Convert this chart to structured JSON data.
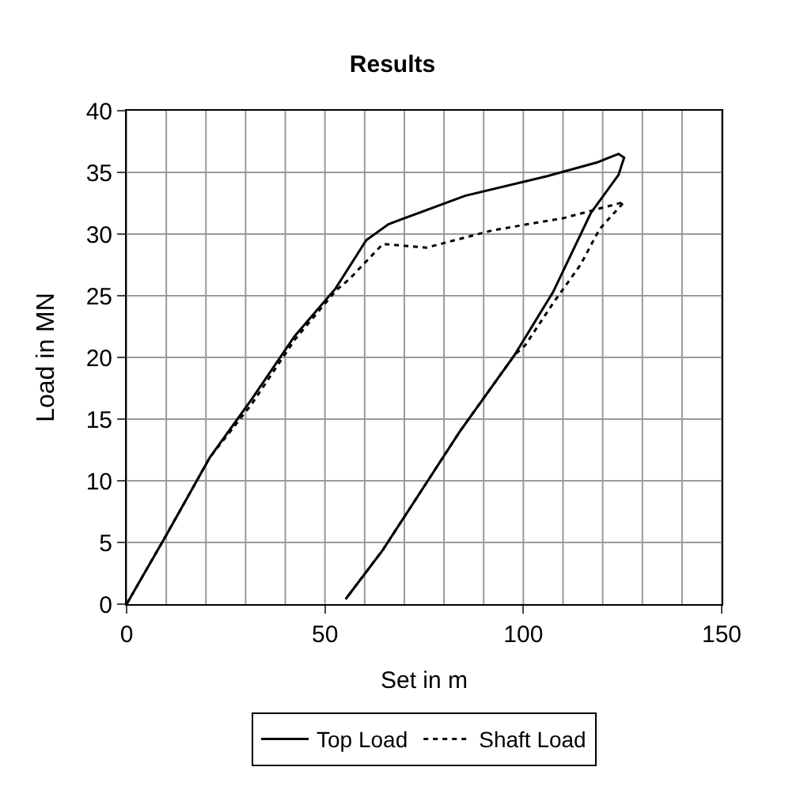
{
  "chart_data": {
    "type": "line",
    "title": "Results",
    "xlabel": "Set in m",
    "ylabel": "Load in MN",
    "xlim": [
      0,
      150
    ],
    "xticks": [
      0,
      50,
      100,
      150
    ],
    "ylim": [
      0,
      40
    ],
    "yticks": [
      0,
      5,
      10,
      15,
      20,
      25,
      30,
      35,
      40
    ],
    "grid": true,
    "legend": "bottom",
    "series": [
      {
        "name": "Top Load",
        "color": "#000000",
        "line_style": "solid",
        "x": [
          0,
          10,
          21,
          31.5,
          42.3,
          52.7,
          60.4,
          66,
          85.3,
          106,
          118.5,
          124,
          125.4,
          124,
          117,
          107.5,
          97.8,
          84,
          74.3,
          64.6,
          55.2
        ],
        "values": [
          0,
          5.6,
          11.9,
          16.6,
          21.7,
          25.6,
          29.5,
          30.8,
          33.1,
          34.7,
          35.8,
          36.5,
          36.2,
          34.8,
          31.7,
          25.3,
          20.2,
          14,
          9.2,
          4.4,
          0.4
        ]
      },
      {
        "name": "Shaft Load",
        "color": "#000000",
        "line_style": "dotted",
        "x": [
          0,
          10,
          21,
          31.5,
          42.3,
          52.7,
          56.3,
          64.6,
          75.6,
          92.2,
          110.2,
          125.4,
          119.2,
          114.4,
          107.5,
          100.5,
          97.8,
          84,
          74.3,
          64.6,
          55.2
        ],
        "values": [
          0,
          5.6,
          11.9,
          16.2,
          21.4,
          25.4,
          26.4,
          29.2,
          28.9,
          30.3,
          31.3,
          32.6,
          30.4,
          27.5,
          24.4,
          21,
          20.2,
          14,
          9.2,
          4.4,
          0.4
        ]
      }
    ]
  }
}
